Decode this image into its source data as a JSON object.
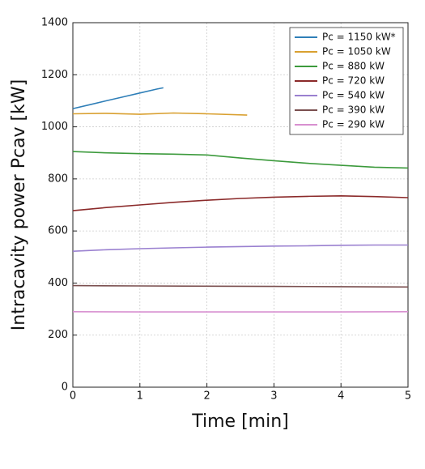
{
  "chart_data": {
    "type": "line",
    "xlabel": "Time [min]",
    "ylabel": "Intracavity power Pcav [kW]",
    "xlim": [
      0,
      5
    ],
    "xticks": [
      0,
      1,
      2,
      3,
      4,
      5
    ],
    "ylim": [
      0,
      1400
    ],
    "yticks": [
      0,
      200,
      400,
      600,
      800,
      1000,
      1200,
      1400
    ],
    "grid": true,
    "legend": "upper right",
    "series": [
      {
        "name": "Pc = 1150 kW*",
        "color": "#2f7fb8",
        "x": [
          0,
          0.25,
          0.5,
          0.75,
          1,
          1.25,
          1.35
        ],
        "values": [
          1070,
          1085,
          1100,
          1115,
          1130,
          1145,
          1150
        ]
      },
      {
        "name": "Pc = 1050 kW",
        "color": "#d9a030",
        "x": [
          0,
          0.5,
          1,
          1.5,
          2,
          2.6
        ],
        "values": [
          1050,
          1052,
          1048,
          1053,
          1050,
          1045
        ]
      },
      {
        "name": "Pc = 880 kW",
        "color": "#3c9a3c",
        "x": [
          0,
          0.5,
          1,
          1.5,
          2,
          2.5,
          3,
          3.5,
          4,
          4.5,
          5
        ],
        "values": [
          905,
          900,
          897,
          895,
          892,
          880,
          870,
          860,
          852,
          845,
          842
        ]
      },
      {
        "name": "Pc = 720 kW",
        "color": "#8b2a2a",
        "x": [
          0,
          0.5,
          1,
          1.5,
          2,
          2.5,
          3,
          3.5,
          4,
          4.5,
          5
        ],
        "values": [
          678,
          690,
          700,
          710,
          718,
          725,
          730,
          733,
          735,
          732,
          728
        ]
      },
      {
        "name": "Pc = 540 kW",
        "color": "#9a80d0",
        "x": [
          0,
          0.5,
          1,
          1.5,
          2,
          2.5,
          3,
          3.5,
          4,
          4.5,
          5
        ],
        "values": [
          522,
          528,
          532,
          535,
          538,
          540,
          542,
          543,
          545,
          546,
          546
        ]
      },
      {
        "name": "Pc = 390 kW",
        "color": "#7a4f4f",
        "x": [
          0,
          1,
          2,
          3,
          4,
          5
        ],
        "values": [
          390,
          389,
          388,
          387,
          386,
          385
        ]
      },
      {
        "name": "Pc = 290 kW",
        "color": "#d890d0",
        "x": [
          0,
          1,
          2,
          3,
          4,
          5
        ],
        "values": [
          290,
          289,
          289,
          289,
          289,
          290
        ]
      }
    ]
  }
}
